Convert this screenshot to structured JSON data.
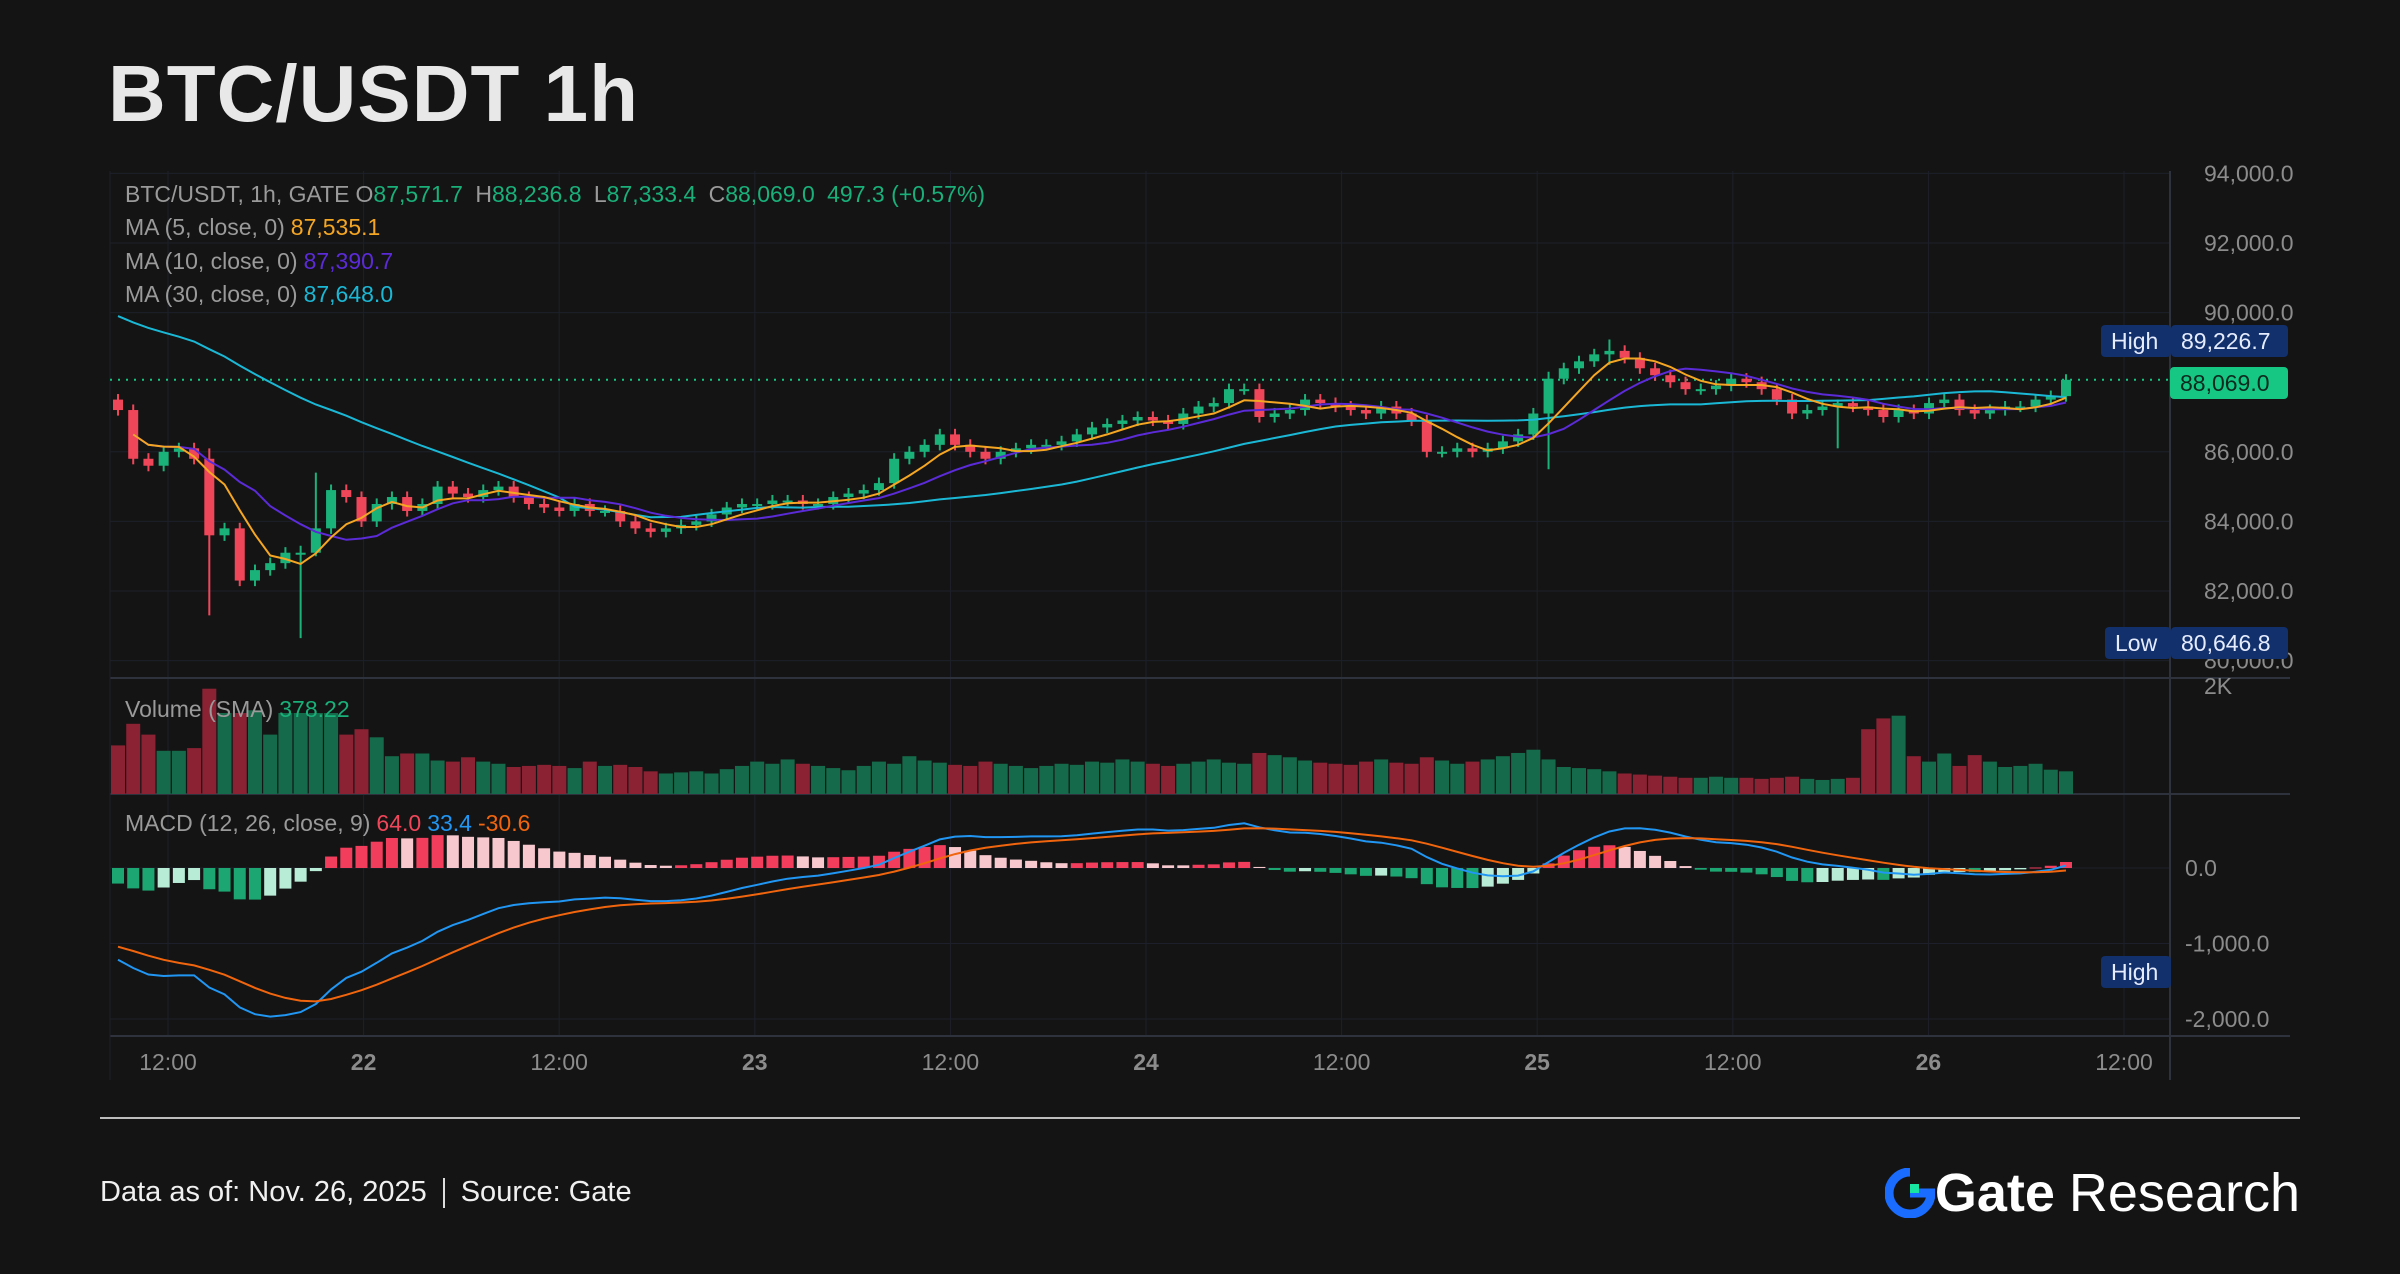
{
  "title": "BTC/USDT 1h",
  "legend": {
    "symbol": "BTC/USDT, 1h, GATE",
    "o_label": "O",
    "o": "87,571.7",
    "h_label": "H",
    "h": "88,236.8",
    "l_label": "L",
    "l": "87,333.4",
    "c_label": "C",
    "c": "88,069.0",
    "change": "497.3 (+0.57%)",
    "ma5_label": "MA (5, close, 0)",
    "ma5": "87,535.1",
    "ma10_label": "MA (10, close, 0)",
    "ma10": "87,390.7",
    "ma30_label": "MA (30, close, 0)",
    "ma30": "87,648.0",
    "volume_label": "Volume (SMA)",
    "volume": "378.22",
    "macd_label": "MACD (12, 26, close, 9)",
    "macd_hist": "64.0",
    "macd_line": "33.4",
    "macd_signal": "-30.6"
  },
  "tags": {
    "high_label": "High",
    "high_value": "89,226.7",
    "low_label": "Low",
    "low_value": "80,646.8",
    "current_value": "88,069.0",
    "macd_high_label": "High"
  },
  "colors": {
    "up": "#1bb27a",
    "down": "#f0465a",
    "vol_up": "#146a4a",
    "vol_down": "#8a2233",
    "ma5": "#f5a623",
    "ma10": "#5b2bd8",
    "ma30": "#1bb8d6",
    "macd": "#2196f3",
    "signal": "#f0650e"
  },
  "chart_data": {
    "type": "candlestick",
    "title": "BTC/USDT 1h",
    "price_ticks": [
      "94,000.0",
      "92,000.0",
      "90,000.0",
      "86,000.0",
      "84,000.0",
      "82,000.0",
      "80,000.0"
    ],
    "price_tick_values": [
      94000,
      92000,
      90000,
      86000,
      84000,
      82000,
      80000
    ],
    "volume_ticks": [
      "2K"
    ],
    "macd_ticks": [
      "0.0",
      "-1,000.0",
      "-2,000.0"
    ],
    "macd_tick_values": [
      0,
      -1000,
      -2000
    ],
    "x_ticks": [
      "12:00",
      "22",
      "12:00",
      "23",
      "12:00",
      "24",
      "12:00",
      "25",
      "12:00",
      "26",
      "12:00"
    ],
    "ylim": [
      80000,
      94000
    ],
    "high": 89226.7,
    "low": 80646.8,
    "last": 88069.0,
    "closes": [
      87200,
      85800,
      85600,
      86000,
      86100,
      85800,
      83600,
      83800,
      82300,
      82600,
      82800,
      83100,
      83100,
      83800,
      84900,
      84700,
      84000,
      84500,
      84700,
      84300,
      84500,
      85000,
      84800,
      84700,
      84900,
      85000,
      84700,
      84500,
      84400,
      84300,
      84500,
      84300,
      84300,
      84000,
      83800,
      83700,
      83800,
      83900,
      84000,
      84200,
      84400,
      84500,
      84500,
      84600,
      84600,
      84500,
      84500,
      84700,
      84800,
      84900,
      85100,
      85800,
      86000,
      86200,
      86500,
      86200,
      86000,
      85800,
      86000,
      86100,
      86200,
      86200,
      86300,
      86500,
      86700,
      86800,
      86900,
      87000,
      86900,
      86800,
      87100,
      87300,
      87400,
      87800,
      87800,
      87000,
      87100,
      87200,
      87500,
      87400,
      87300,
      87200,
      87100,
      87300,
      87100,
      86900,
      86000,
      86000,
      86100,
      86000,
      86100,
      86300,
      86500,
      87100,
      88100,
      88400,
      88600,
      88800,
      88900,
      88700,
      88400,
      88200,
      88000,
      87800,
      87800,
      87900,
      88100,
      88000,
      87800,
      87500,
      87100,
      87200,
      87300,
      87400,
      87300,
      87200,
      87000,
      87200,
      87100,
      87400,
      87500,
      87200,
      87100,
      87200,
      87300,
      87300,
      87500,
      87600,
      88069
    ],
    "first_open": 87500,
    "wick_extremes": {
      "6": [
        86100,
        81300
      ],
      "12": [
        83300,
        80646.8
      ],
      "13": [
        85400,
        83000
      ],
      "94": [
        88300,
        85500
      ],
      "98": [
        89226.7,
        88500
      ],
      "113": [
        87500,
        86100
      ]
    },
    "volumes": [
      900,
      1300,
      1100,
      800,
      800,
      850,
      1950,
      1500,
      1500,
      1550,
      1100,
      1500,
      1500,
      1500,
      1500,
      1100,
      1200,
      1050,
      700,
      750,
      750,
      620,
      600,
      680,
      600,
      560,
      500,
      520,
      540,
      520,
      480,
      600,
      520,
      540,
      500,
      420,
      380,
      400,
      420,
      380,
      460,
      520,
      600,
      560,
      640,
      560,
      520,
      480,
      440,
      520,
      600,
      560,
      700,
      620,
      580,
      540,
      520,
      600,
      560,
      520,
      480,
      520,
      560,
      540,
      600,
      580,
      640,
      600,
      560,
      520,
      560,
      600,
      640,
      580,
      560,
      760,
      720,
      680,
      620,
      580,
      560,
      540,
      600,
      640,
      580,
      560,
      680,
      620,
      560,
      600,
      640,
      700,
      760,
      820,
      640,
      500,
      480,
      460,
      420,
      380,
      360,
      340,
      320,
      300,
      300,
      320,
      300,
      300,
      280,
      300,
      320,
      280,
      260,
      280,
      300,
      1200,
      1400,
      1450,
      700,
      600,
      750,
      520,
      720,
      600,
      500,
      520,
      560,
      450,
      420
    ]
  }
}
